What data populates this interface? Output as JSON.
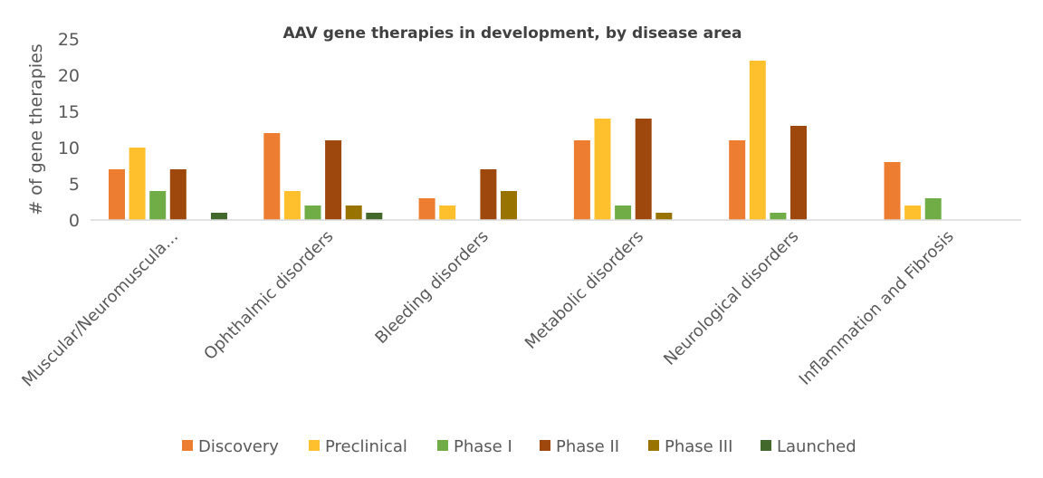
{
  "chart_data": {
    "type": "bar",
    "title": "AAV gene therapies in development, by disease area",
    "xlabel": "",
    "ylabel": "# of gene therapies",
    "ylim": [
      0,
      25
    ],
    "yticks": [
      "0",
      "5",
      "10",
      "15",
      "20",
      "25"
    ],
    "grid": false,
    "legend_position": "bottom",
    "categories": [
      "Muscular/Neuromuscula…",
      "Ophthalmic disorders",
      "Bleeding disorders",
      "Metabolic disorders",
      "Neurological disorders",
      "Inflammation and Fibrosis"
    ],
    "series": [
      {
        "name": "Discovery",
        "color": "#ED7D31",
        "values": [
          7,
          12,
          3,
          11,
          11,
          8
        ]
      },
      {
        "name": "Preclinical",
        "color": "#FFC02E",
        "values": [
          10,
          4,
          2,
          14,
          22,
          2
        ]
      },
      {
        "name": "Phase I",
        "color": "#70AD47",
        "values": [
          4,
          2,
          0,
          2,
          1,
          3
        ]
      },
      {
        "name": "Phase II",
        "color": "#9E480E",
        "values": [
          7,
          11,
          7,
          14,
          13,
          0
        ]
      },
      {
        "name": "Phase III",
        "color": "#997300",
        "values": [
          0,
          2,
          4,
          1,
          0,
          0
        ]
      },
      {
        "name": "Launched",
        "color": "#43682B",
        "values": [
          1,
          1,
          0,
          0,
          0,
          0
        ]
      }
    ]
  }
}
